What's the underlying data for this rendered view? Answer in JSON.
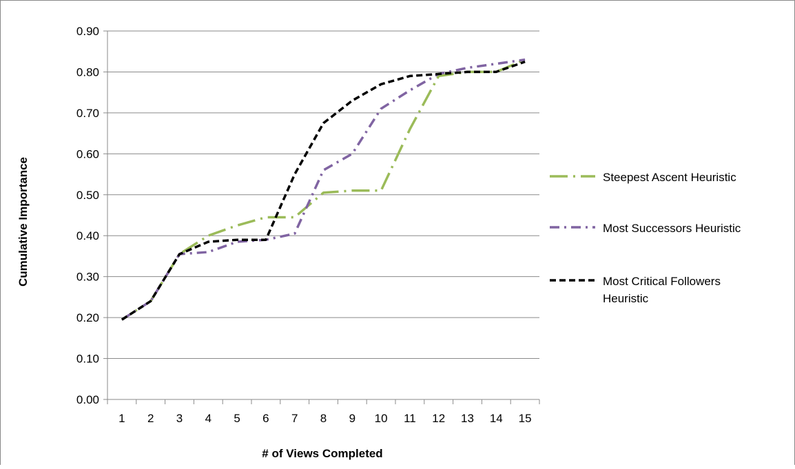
{
  "chart_data": {
    "type": "line",
    "title": "",
    "xlabel": "# of Views Completed",
    "ylabel": "Cumulative Importance",
    "x": [
      1,
      2,
      3,
      4,
      5,
      6,
      7,
      8,
      9,
      10,
      11,
      12,
      13,
      14,
      15
    ],
    "ylim": [
      0,
      0.9
    ],
    "y_ticks": [
      "0.00",
      "0.10",
      "0.20",
      "0.30",
      "0.40",
      "0.50",
      "0.60",
      "0.70",
      "0.80",
      "0.90"
    ],
    "x_ticks": [
      "1",
      "2",
      "3",
      "4",
      "5",
      "6",
      "7",
      "8",
      "9",
      "10",
      "11",
      "12",
      "13",
      "14",
      "15"
    ],
    "grid": "horizontal",
    "legend_position": "right",
    "series": [
      {
        "name": "Steepest Ascent Heuristic",
        "color": "#9BBB59",
        "dash": "long-dash-dot",
        "values": [
          0.195,
          0.24,
          0.355,
          0.4,
          0.425,
          0.445,
          0.445,
          0.505,
          0.51,
          0.51,
          0.66,
          0.79,
          0.8,
          0.8,
          0.83
        ]
      },
      {
        "name": "Most Successors Heuristic",
        "color": "#8064A2",
        "dash": "dash-dot",
        "values": [
          0.195,
          0.24,
          0.355,
          0.36,
          0.385,
          0.39,
          0.405,
          0.56,
          0.6,
          0.71,
          0.755,
          0.795,
          0.81,
          0.82,
          0.83
        ]
      },
      {
        "name": "Most Critical Followers Heuristic",
        "color": "#000000",
        "dash": "dash",
        "values": [
          0.195,
          0.24,
          0.355,
          0.385,
          0.39,
          0.39,
          0.55,
          0.675,
          0.73,
          0.77,
          0.79,
          0.795,
          0.8,
          0.8,
          0.825
        ]
      }
    ],
    "legend_lines": [
      [
        "Steepest Ascent Heuristic"
      ],
      [
        "Most Successors Heuristic"
      ],
      [
        "Most Critical Followers",
        "Heuristic"
      ]
    ]
  }
}
